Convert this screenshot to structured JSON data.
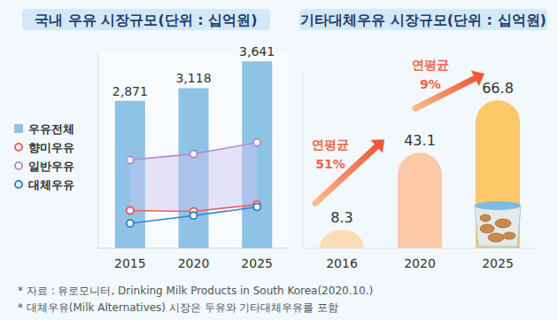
{
  "chart_data": [
    {
      "type": "bar",
      "title": "국내 우유 시장규모(단위 : 십억원)",
      "categories": [
        "2015",
        "2020",
        "2025"
      ],
      "ylim": [
        0,
        3800
      ],
      "tick_labels": "x",
      "legend": "left",
      "series": [
        {
          "name": "우유전체",
          "type": "bar",
          "color": "#8ec3e6",
          "values": [
            2871,
            3118,
            3641
          ],
          "value_labels": [
            "2,871",
            "3,118",
            "3,641"
          ],
          "data_labels": true
        },
        {
          "name": "향미우유",
          "type": "line",
          "color": "#e8615f",
          "marker": "circle",
          "values": [
            735,
            718,
            852
          ]
        },
        {
          "name": "일반우유",
          "type": "line",
          "color": "#b58fd0",
          "marker": "circle",
          "values": [
            1720,
            1837,
            2058
          ]
        },
        {
          "name": "대체우유",
          "type": "line",
          "color": "#3a7fd5",
          "marker": "circle",
          "values": [
            484,
            635,
            802
          ]
        }
      ]
    },
    {
      "type": "bar",
      "title": "기타대체우유 시장규모(단위 : 십억원)",
      "categories": [
        "2016",
        "2020",
        "2025"
      ],
      "values": [
        8.3,
        43.1,
        66.8
      ],
      "colors": [
        "#fddcb5",
        "#fdc8a8",
        "#fdc868"
      ],
      "ylim": [
        0,
        80
      ],
      "tick_labels": "x",
      "data_labels": true,
      "annotations": [
        {
          "lines": [
            "연평균",
            "51%"
          ]
        },
        {
          "lines": [
            "연평균",
            "9%"
          ]
        }
      ]
    }
  ],
  "footnotes": [
    "* 자료 : 유로모니터, Drinking Milk Products in South Korea(2020.10.)",
    "* 대체우유(Milk Alternatives) 시장은 두유와 기타대체우유를 포함"
  ]
}
